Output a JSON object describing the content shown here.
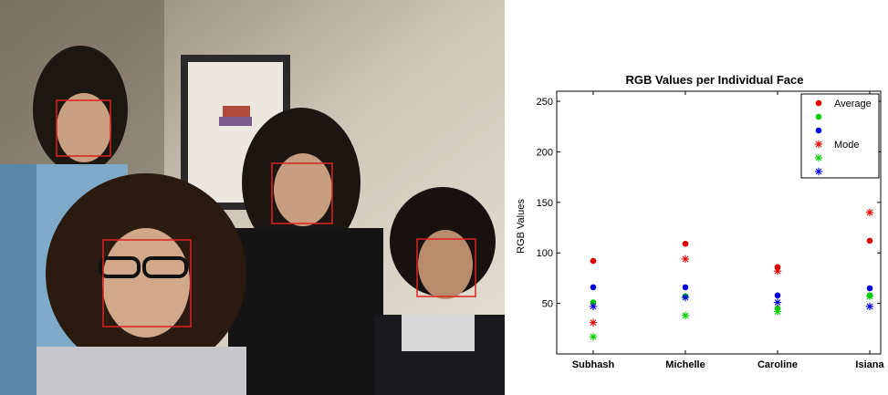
{
  "chart_data": {
    "type": "scatter",
    "title": "RGB Values per Individual Face",
    "xlabel": "",
    "ylabel": "RGB Values",
    "categories": [
      "Subhash",
      "Michelle",
      "Caroline",
      "Isiana"
    ],
    "ylim": [
      0,
      260
    ],
    "yticks": [
      50,
      100,
      150,
      200,
      250
    ],
    "grid": false,
    "legend_position": "top-right",
    "series": [
      {
        "name": "Average",
        "marker": "dot",
        "color": "#e00000",
        "values": [
          92,
          109,
          86,
          112
        ]
      },
      {
        "name": "",
        "marker": "dot",
        "color": "#00cc00",
        "values": [
          51,
          57,
          45,
          58
        ]
      },
      {
        "name": "",
        "marker": "dot",
        "color": "#0000dd",
        "values": [
          66,
          66,
          58,
          65
        ]
      },
      {
        "name": "Mode",
        "marker": "asterisk",
        "color": "#e00000",
        "values": [
          31,
          94,
          82,
          140
        ]
      },
      {
        "name": "",
        "marker": "asterisk",
        "color": "#00cc00",
        "values": [
          17,
          38,
          42,
          57
        ]
      },
      {
        "name": "",
        "marker": "asterisk",
        "color": "#0000dd",
        "values": [
          47,
          56,
          51,
          47
        ]
      }
    ]
  },
  "photo": {
    "face_box_color": "#e02020"
  }
}
